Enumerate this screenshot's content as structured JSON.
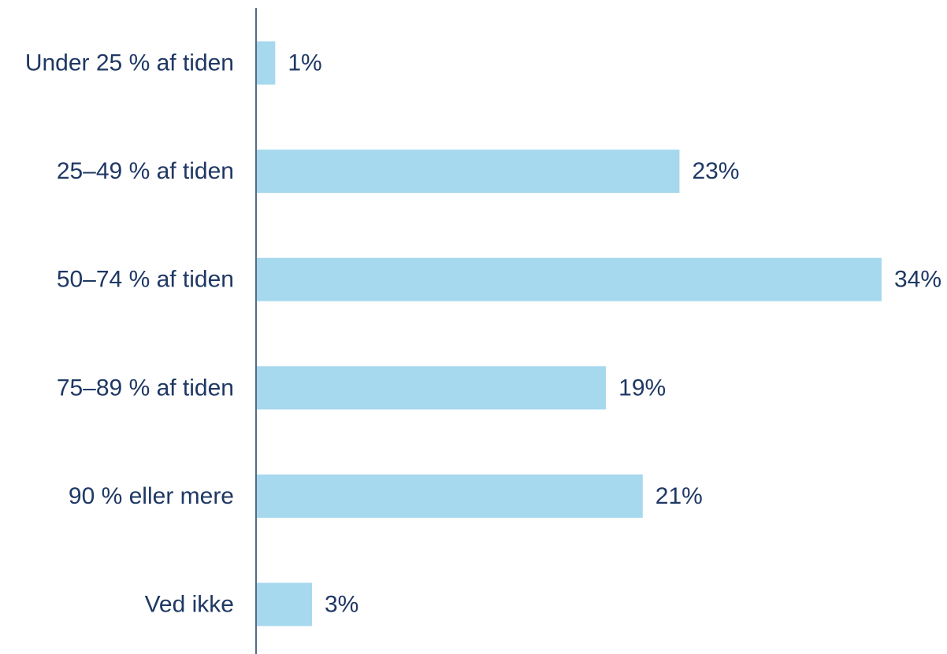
{
  "chart_data": {
    "type": "bar",
    "orientation": "horizontal",
    "categories": [
      "Under 25 % af tiden",
      "25–49 % af tiden",
      "50–74 % af tiden",
      "75–89 % af tiden",
      "90 % eller mere",
      "Ved ikke"
    ],
    "values": [
      1,
      23,
      34,
      19,
      21,
      3
    ],
    "value_labels": [
      "1%",
      "23%",
      "34%",
      "19%",
      "21%",
      "3%"
    ],
    "title": "",
    "xlabel": "",
    "ylabel": "",
    "xlim": [
      0,
      34
    ],
    "grid": false,
    "legend": "none",
    "colors": {
      "bar": "#a6d8ee",
      "text": "#1f3864",
      "axis": "#1f3864"
    }
  }
}
